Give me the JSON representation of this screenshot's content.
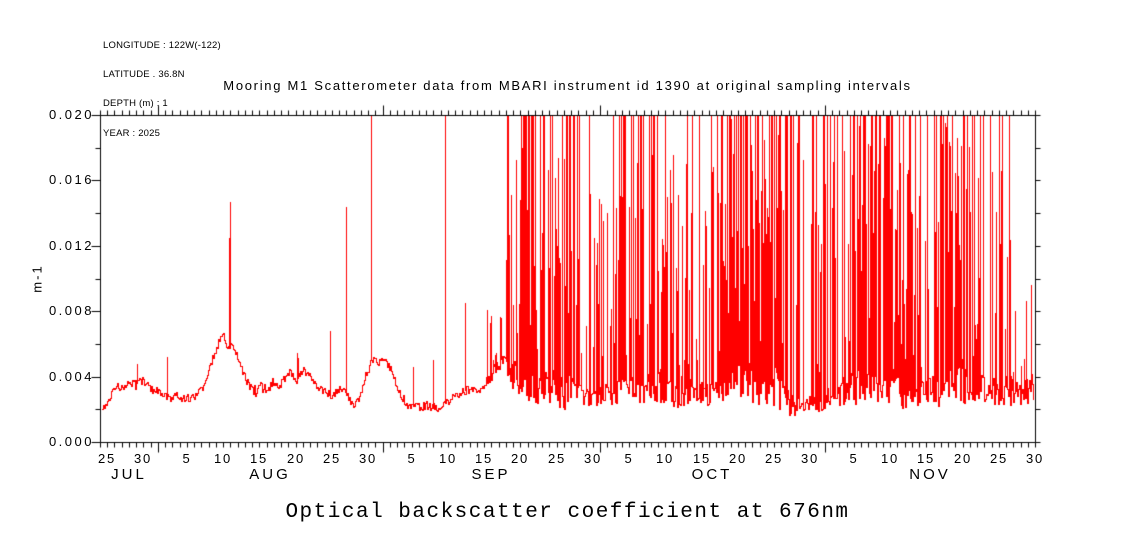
{
  "meta_block": {
    "lines": [
      "LONGITUDE : 122W(-122)",
      "LATITUDE . 36.8N",
      "DEPTH (m) : 1",
      "YEAR : 2025"
    ]
  },
  "chart_data": {
    "type": "line",
    "title": "Mooring M1 Scatterometer data from MBARI instrument id 1390 at original sampling intervals",
    "bottom_title": "Optical backscatter coefficient at 676nm",
    "ylabel": "m-1",
    "series_color": "#ff0000",
    "axis_color": "#000000",
    "background_color": "#ffffff",
    "ylim": [
      0,
      0.02
    ],
    "y_minor_step": 0.002,
    "y_ticks": [
      {
        "value": 0.0,
        "label": "0.000"
      },
      {
        "value": 0.004,
        "label": "0.004"
      },
      {
        "value": 0.008,
        "label": "0.008"
      },
      {
        "value": 0.012,
        "label": "0.012"
      },
      {
        "value": 0.016,
        "label": "0.016"
      },
      {
        "value": 0.02,
        "label": "0.020"
      }
    ],
    "x_days_total": 129,
    "months": [
      {
        "label": "JUL",
        "start_day": 0,
        "end_day": 8
      },
      {
        "label": "AUG",
        "start_day": 8,
        "end_day": 39
      },
      {
        "label": "SEP",
        "start_day": 39,
        "end_day": 69
      },
      {
        "label": "OCT",
        "start_day": 69,
        "end_day": 100
      },
      {
        "label": "NOV",
        "start_day": 100,
        "end_day": 129
      }
    ],
    "month_start_days": [
      8,
      39,
      69,
      100
    ],
    "x_day_labels": [
      {
        "day": 1,
        "label": "25"
      },
      {
        "day": 6,
        "label": "30"
      },
      {
        "day": 12,
        "label": "5"
      },
      {
        "day": 17,
        "label": "10"
      },
      {
        "day": 22,
        "label": "15"
      },
      {
        "day": 27,
        "label": "20"
      },
      {
        "day": 32,
        "label": "25"
      },
      {
        "day": 37,
        "label": "30"
      },
      {
        "day": 43,
        "label": "5"
      },
      {
        "day": 48,
        "label": "10"
      },
      {
        "day": 53,
        "label": "15"
      },
      {
        "day": 58,
        "label": "20"
      },
      {
        "day": 63,
        "label": "25"
      },
      {
        "day": 68,
        "label": "30"
      },
      {
        "day": 73,
        "label": "5"
      },
      {
        "day": 78,
        "label": "10"
      },
      {
        "day": 83,
        "label": "15"
      },
      {
        "day": 88,
        "label": "20"
      },
      {
        "day": 93,
        "label": "25"
      },
      {
        "day": 98,
        "label": "30"
      },
      {
        "day": 104,
        "label": "5"
      },
      {
        "day": 109,
        "label": "10"
      },
      {
        "day": 114,
        "label": "15"
      },
      {
        "day": 119,
        "label": "20"
      },
      {
        "day": 124,
        "label": "25"
      },
      {
        "day": 129,
        "label": "30"
      }
    ],
    "base_noise": 0.00026,
    "baseline_points": [
      [
        0,
        0.0021
      ],
      [
        0.8,
        0.0024
      ],
      [
        1.6,
        0.003
      ],
      [
        2.4,
        0.0034
      ],
      [
        3.2,
        0.0033
      ],
      [
        4,
        0.0037
      ],
      [
        4.8,
        0.0035
      ],
      [
        5.6,
        0.0038
      ],
      [
        6.4,
        0.0035
      ],
      [
        7.2,
        0.0032
      ],
      [
        8,
        0.0031
      ],
      [
        8.8,
        0.0029
      ],
      [
        9.6,
        0.0027
      ],
      [
        10.4,
        0.0029
      ],
      [
        11.2,
        0.0026
      ],
      [
        12,
        0.0027
      ],
      [
        13,
        0.0028
      ],
      [
        14,
        0.0033
      ],
      [
        15,
        0.0046
      ],
      [
        16,
        0.0058
      ],
      [
        16.8,
        0.0067
      ],
      [
        17.4,
        0.006
      ],
      [
        18.2,
        0.0057
      ],
      [
        19,
        0.0051
      ],
      [
        19.8,
        0.0042
      ],
      [
        20.6,
        0.0033
      ],
      [
        21.4,
        0.0031
      ],
      [
        22.2,
        0.0035
      ],
      [
        23,
        0.0032
      ],
      [
        23.8,
        0.0037
      ],
      [
        24.6,
        0.0034
      ],
      [
        25.4,
        0.0039
      ],
      [
        26.2,
        0.0043
      ],
      [
        27,
        0.0039
      ],
      [
        27.8,
        0.0045
      ],
      [
        28.6,
        0.0041
      ],
      [
        29.4,
        0.0037
      ],
      [
        30.2,
        0.0034
      ],
      [
        31,
        0.0031
      ],
      [
        31.8,
        0.0029
      ],
      [
        32.6,
        0.0031
      ],
      [
        33.4,
        0.0034
      ],
      [
        34.2,
        0.0027
      ],
      [
        35,
        0.0022
      ],
      [
        35.8,
        0.0027
      ],
      [
        36.6,
        0.0041
      ],
      [
        37.4,
        0.005
      ],
      [
        38.2,
        0.0049
      ],
      [
        39,
        0.0051
      ],
      [
        39.8,
        0.0046
      ],
      [
        40.6,
        0.0038
      ],
      [
        41.4,
        0.0029
      ],
      [
        42.2,
        0.0024
      ],
      [
        43,
        0.0022
      ],
      [
        44,
        0.0021
      ],
      [
        45,
        0.0023
      ],
      [
        46,
        0.0021
      ],
      [
        47,
        0.0022
      ],
      [
        48,
        0.0025
      ],
      [
        49,
        0.0029
      ],
      [
        50,
        0.0031
      ],
      [
        51,
        0.0033
      ],
      [
        52,
        0.0031
      ],
      [
        53,
        0.0036
      ],
      [
        54,
        0.0043
      ],
      [
        55,
        0.0048
      ],
      [
        55.8,
        0.0051
      ],
      [
        56.6,
        0.0044
      ],
      [
        57.4,
        0.004
      ],
      [
        58.2,
        0.0037
      ],
      [
        59,
        0.0036
      ],
      [
        60,
        0.0034
      ],
      [
        61,
        0.0033
      ],
      [
        62,
        0.0035
      ],
      [
        63,
        0.0032
      ],
      [
        64,
        0.0031
      ],
      [
        65,
        0.0034
      ],
      [
        66,
        0.0031
      ],
      [
        67,
        0.0028
      ],
      [
        68,
        0.0027
      ],
      [
        69,
        0.0029
      ],
      [
        70,
        0.0031
      ],
      [
        71,
        0.0033
      ],
      [
        72,
        0.0031
      ],
      [
        73,
        0.0034
      ],
      [
        74,
        0.0035
      ],
      [
        75,
        0.0032
      ],
      [
        76,
        0.0031
      ],
      [
        77,
        0.0033
      ],
      [
        78,
        0.0031
      ],
      [
        79,
        0.0029
      ],
      [
        80,
        0.0028
      ],
      [
        81,
        0.0031
      ],
      [
        82,
        0.0032
      ],
      [
        83,
        0.0031
      ],
      [
        84,
        0.0029
      ],
      [
        85,
        0.0032
      ],
      [
        86,
        0.0035
      ],
      [
        87,
        0.0037
      ],
      [
        88,
        0.0039
      ],
      [
        89,
        0.0038
      ],
      [
        90,
        0.0037
      ],
      [
        91,
        0.0036
      ],
      [
        92,
        0.0037
      ],
      [
        93,
        0.0035
      ],
      [
        94,
        0.0029
      ],
      [
        95,
        0.0024
      ],
      [
        96,
        0.0022
      ],
      [
        97,
        0.0023
      ],
      [
        98,
        0.0026
      ],
      [
        99,
        0.0022
      ],
      [
        100,
        0.0026
      ],
      [
        101,
        0.0029
      ],
      [
        102,
        0.0031
      ],
      [
        103,
        0.0033
      ],
      [
        104,
        0.0036
      ],
      [
        105,
        0.0038
      ],
      [
        106,
        0.0037
      ],
      [
        107,
        0.0036
      ],
      [
        108,
        0.0035
      ],
      [
        109,
        0.0036
      ],
      [
        110,
        0.0034
      ],
      [
        111,
        0.0032
      ],
      [
        112,
        0.003
      ],
      [
        113,
        0.0029
      ],
      [
        114,
        0.0031
      ],
      [
        115,
        0.0033
      ],
      [
        116,
        0.0035
      ],
      [
        117,
        0.0037
      ],
      [
        118,
        0.0036
      ],
      [
        119,
        0.0035
      ],
      [
        120,
        0.0034
      ],
      [
        121,
        0.0035
      ],
      [
        122,
        0.0033
      ],
      [
        123,
        0.0031
      ],
      [
        124,
        0.0032
      ],
      [
        125,
        0.003
      ],
      [
        126,
        0.0031
      ],
      [
        127,
        0.0032
      ],
      [
        128,
        0.0033
      ],
      [
        129,
        0.0035
      ]
    ],
    "major_spikes": [
      [
        5.1,
        0.0048
      ],
      [
        9.2,
        0.0052
      ],
      [
        17.75,
        0.0125
      ],
      [
        17.9,
        0.0147
      ],
      [
        31.7,
        0.0068
      ],
      [
        33.95,
        0.0144
      ],
      [
        37.4,
        0.02
      ],
      [
        43.2,
        0.0046
      ],
      [
        46.0,
        0.005
      ],
      [
        47.55,
        0.02
      ],
      [
        50.4,
        0.0085
      ]
    ],
    "spike_regions": [
      {
        "d0": 21.0,
        "d1": 22.4,
        "prob": 0.3,
        "hmin": 0.0055,
        "hmax": 0.0078,
        "sat": 0.0,
        "noise": 0.0004
      },
      {
        "d0": 25.0,
        "d1": 27.5,
        "prob": 0.12,
        "hmin": 0.0045,
        "hmax": 0.006,
        "sat": 0.0,
        "noise": 0.0003
      },
      {
        "d0": 53.0,
        "d1": 55.8,
        "prob": 0.3,
        "hmin": 0.0045,
        "hmax": 0.009,
        "sat": 0.02,
        "noise": 0.0005
      },
      {
        "d0": 55.8,
        "d1": 66.5,
        "prob": 0.82,
        "hmin": 0.005,
        "hmax": 0.0185,
        "sat": 0.5,
        "noise": 0.0011
      },
      {
        "d0": 66.5,
        "d1": 70.2,
        "prob": 0.4,
        "hmin": 0.004,
        "hmax": 0.016,
        "sat": 0.12,
        "noise": 0.0006
      },
      {
        "d0": 70.2,
        "d1": 77.0,
        "prob": 0.8,
        "hmin": 0.005,
        "hmax": 0.019,
        "sat": 0.42,
        "noise": 0.001
      },
      {
        "d0": 77.0,
        "d1": 82.0,
        "prob": 0.6,
        "hmin": 0.004,
        "hmax": 0.018,
        "sat": 0.32,
        "noise": 0.0008
      },
      {
        "d0": 82.0,
        "d1": 85.5,
        "prob": 0.5,
        "hmin": 0.004,
        "hmax": 0.017,
        "sat": 0.25,
        "noise": 0.0008
      },
      {
        "d0": 85.5,
        "d1": 94.0,
        "prob": 0.93,
        "hmin": 0.006,
        "hmax": 0.02,
        "sat": 0.42,
        "noise": 0.0013
      },
      {
        "d0": 94.0,
        "d1": 96.5,
        "prob": 0.6,
        "hmin": 0.004,
        "hmax": 0.019,
        "sat": 0.3,
        "noise": 0.0008
      },
      {
        "d0": 96.5,
        "d1": 99.5,
        "prob": 0.35,
        "hmin": 0.004,
        "hmax": 0.018,
        "sat": 0.25,
        "noise": 0.0005
      },
      {
        "d0": 99.5,
        "d1": 103.5,
        "prob": 0.65,
        "hmin": 0.005,
        "hmax": 0.019,
        "sat": 0.38,
        "noise": 0.0009
      },
      {
        "d0": 103.5,
        "d1": 112.0,
        "prob": 0.92,
        "hmin": 0.005,
        "hmax": 0.02,
        "sat": 0.45,
        "noise": 0.0013
      },
      {
        "d0": 112.0,
        "d1": 115.0,
        "prob": 0.55,
        "hmin": 0.004,
        "hmax": 0.018,
        "sat": 0.3,
        "noise": 0.0008
      },
      {
        "d0": 115.0,
        "d1": 121.5,
        "prob": 0.88,
        "hmin": 0.005,
        "hmax": 0.02,
        "sat": 0.4,
        "noise": 0.0012
      },
      {
        "d0": 121.5,
        "d1": 127.0,
        "prob": 0.6,
        "hmin": 0.004,
        "hmax": 0.017,
        "sat": 0.22,
        "noise": 0.0009
      },
      {
        "d0": 127.0,
        "d1": 129.0,
        "prob": 0.55,
        "hmin": 0.004,
        "hmax": 0.014,
        "sat": 0.12,
        "noise": 0.0009
      }
    ]
  }
}
